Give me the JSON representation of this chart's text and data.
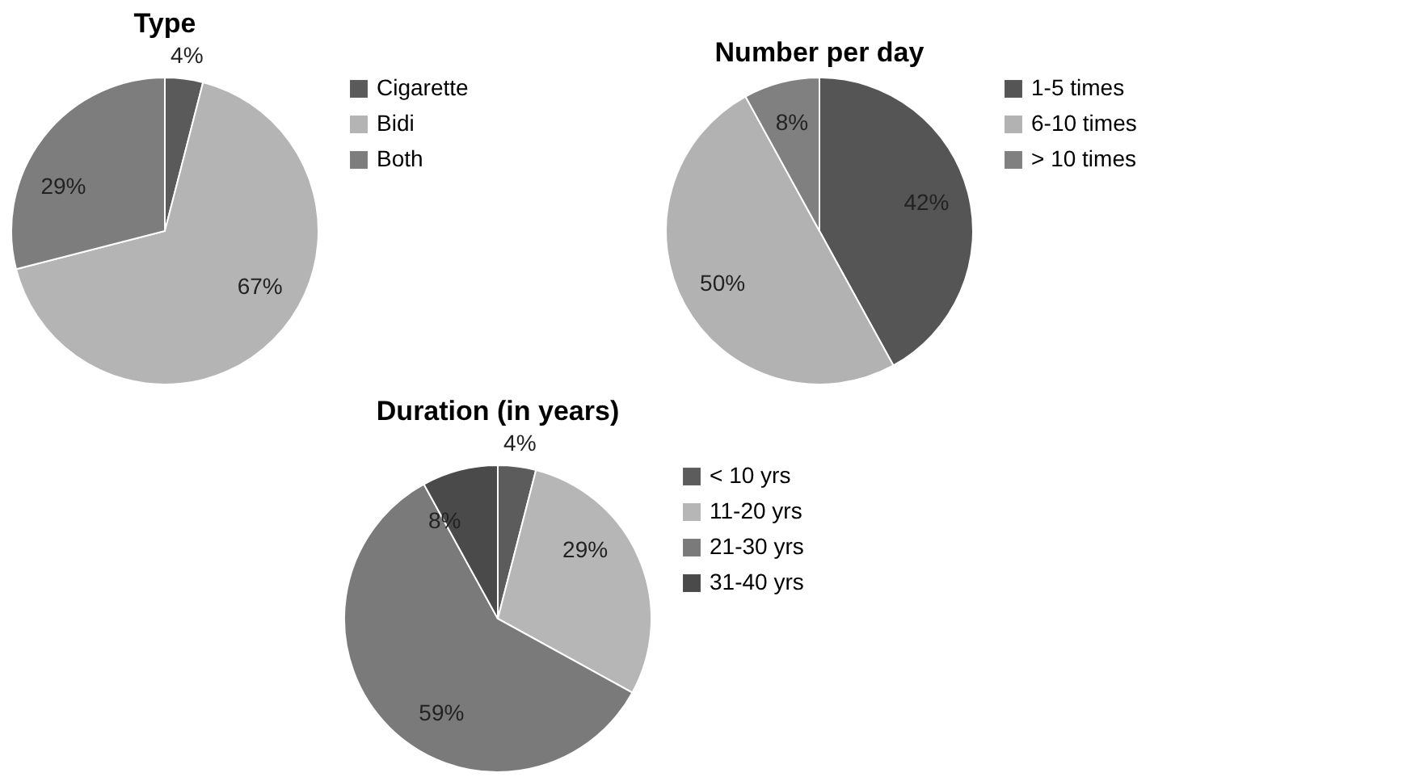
{
  "chart_data": [
    {
      "type": "pie",
      "title": "Type",
      "categories": [
        "Cigarette",
        "Bidi",
        "Both"
      ],
      "values": [
        4,
        67,
        29
      ],
      "value_labels": [
        "4%",
        "67%",
        "29%"
      ],
      "colors": [
        "#5a5a5a",
        "#b4b4b4",
        "#7d7d7d"
      ],
      "legend": "right"
    },
    {
      "type": "pie",
      "title": "Number  per day",
      "categories": [
        "1-5 times",
        "6-10 times",
        "> 10 times"
      ],
      "values": [
        42,
        50,
        8
      ],
      "value_labels": [
        "42%",
        "50%",
        "8%"
      ],
      "colors": [
        "#555555",
        "#b2b2b2",
        "#808080"
      ],
      "legend": "right"
    },
    {
      "type": "pie",
      "title": "Duration (in years)",
      "categories": [
        "< 10 yrs",
        "11-20 yrs",
        "21-30 yrs",
        "31-40 yrs"
      ],
      "values": [
        4,
        29,
        59,
        8
      ],
      "value_labels": [
        "4%",
        "29%",
        "59%",
        "8%"
      ],
      "colors": [
        "#5c5c5c",
        "#b6b6b6",
        "#7a7a7a",
        "#4a4a4a"
      ],
      "legend": "right"
    }
  ]
}
